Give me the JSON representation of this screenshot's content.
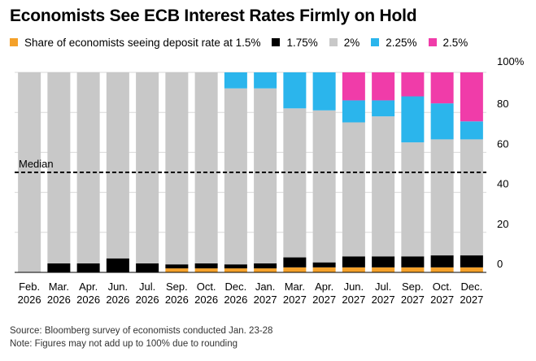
{
  "chart_data": {
    "type": "bar",
    "stacked": true,
    "title": "Economists See ECB Interest Rates Firmly on Hold",
    "legend_prefix": "Share of economists seeing deposit rate at",
    "categories": [
      [
        "Feb.",
        "2026"
      ],
      [
        "Mar.",
        "2026"
      ],
      [
        "Apr.",
        "2026"
      ],
      [
        "Jun.",
        "2026"
      ],
      [
        "Jul.",
        "2026"
      ],
      [
        "Sep.",
        "2026"
      ],
      [
        "Oct.",
        "2026"
      ],
      [
        "Dec.",
        "2026"
      ],
      [
        "Jan.",
        "2027"
      ],
      [
        "Mar.",
        "2027"
      ],
      [
        "Apr.",
        "2027"
      ],
      [
        "Jun.",
        "2027"
      ],
      [
        "Jul.",
        "2027"
      ],
      [
        "Sep.",
        "2027"
      ],
      [
        "Oct.",
        "2027"
      ],
      [
        "Dec.",
        "2027"
      ]
    ],
    "series": [
      {
        "name": "1.5%",
        "color": "#f4a12a",
        "values": [
          0,
          0,
          0,
          0,
          0,
          2,
          2,
          2,
          2,
          2.5,
          2.5,
          2.5,
          2.5,
          2.5,
          2.5,
          2.5
        ]
      },
      {
        "name": "1.75%",
        "color": "#000000",
        "values": [
          0,
          4.5,
          4.5,
          7,
          4.5,
          2,
          2.5,
          2,
          2.5,
          5,
          2.5,
          5.5,
          5.5,
          5.5,
          6,
          6
        ]
      },
      {
        "name": "2%",
        "color": "#c8c8c8",
        "values": [
          100,
          95.5,
          95.5,
          93,
          95.5,
          96,
          95.5,
          88,
          87.5,
          74.5,
          76,
          67,
          70,
          57,
          58,
          58
        ]
      },
      {
        "name": "2.25%",
        "color": "#2bb5ec",
        "values": [
          0,
          0,
          0,
          0,
          0,
          0,
          0,
          8,
          8,
          18,
          19,
          11,
          8,
          23,
          18,
          9
        ]
      },
      {
        "name": "2.5%",
        "color": "#f03ca9",
        "values": [
          0,
          0,
          0,
          0,
          0,
          0,
          0,
          0,
          0,
          0,
          0,
          14,
          14,
          12,
          15.5,
          24.5
        ]
      }
    ],
    "median": {
      "label": "Median",
      "value": 50
    },
    "y_axis": {
      "ylim": [
        0,
        100
      ],
      "ticks": [
        0,
        20,
        40,
        60,
        80,
        100
      ],
      "top_label": "100%",
      "position": "right"
    },
    "xlabel": "",
    "ylabel": ""
  },
  "footer": {
    "source": "Source: Bloomberg survey of economists conducted Jan. 23-28",
    "note": "Note: Figures may not add up to 100% due to rounding"
  }
}
